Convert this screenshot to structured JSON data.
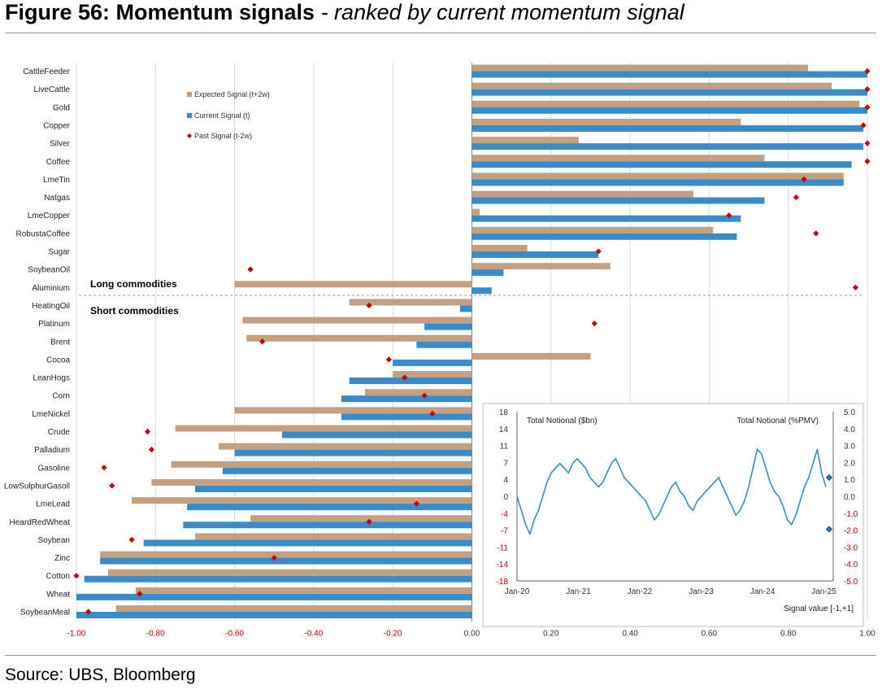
{
  "title": {
    "bold": "Figure 56: Momentum signals",
    "italic": " - ranked by current momentum signal"
  },
  "source": "Source: UBS, Bloomberg",
  "colors": {
    "expected": "#c4a080",
    "current": "#3a8cc8",
    "past": "#c00000",
    "grid": "#d9d9d9",
    "negative_tick": "#c00000",
    "inset_line": "#3a8cc8"
  },
  "chart_data": [
    {
      "type": "bar",
      "orientation": "horizontal",
      "categories": [
        "CattleFeeder",
        "LiveCattle",
        "Gold",
        "Copper",
        "Silver",
        "Coffee",
        "LmeTin",
        "Natgas",
        "LmeCopper",
        "RobustaCoffee",
        "Sugar",
        "SoybeanOil",
        "Aluminium",
        "HeatingOil",
        "Platinum",
        "Brent",
        "Cocoa",
        "LeanHogs",
        "Corn",
        "LmeNickel",
        "Crude",
        "Palladium",
        "Gasoline",
        "LowSulphurGasoil",
        "LmeLead",
        "HeardRedWheat",
        "Soybean",
        "Zinc",
        "Cotton",
        "Wheat",
        "SoybeanMeal"
      ],
      "series": [
        {
          "name": "Expected Signal (t+2w)",
          "values": [
            0.85,
            0.91,
            0.98,
            0.68,
            0.27,
            0.74,
            0.94,
            0.56,
            0.02,
            0.61,
            0.14,
            0.35,
            -0.6,
            -0.31,
            -0.58,
            -0.57,
            0.3,
            -0.2,
            -0.27,
            -0.6,
            -0.75,
            -0.64,
            -0.76,
            -0.81,
            -0.86,
            -0.56,
            -0.7,
            -0.94,
            -0.92,
            -0.85,
            -0.9
          ]
        },
        {
          "name": "Current Signal (t)",
          "values": [
            1.0,
            1.0,
            1.0,
            0.99,
            0.99,
            0.96,
            0.94,
            0.74,
            0.68,
            0.67,
            0.32,
            0.08,
            0.05,
            -0.03,
            -0.12,
            -0.14,
            -0.2,
            -0.31,
            -0.33,
            -0.33,
            -0.48,
            -0.6,
            -0.63,
            -0.7,
            -0.72,
            -0.73,
            -0.83,
            -0.94,
            -0.98,
            -1.0,
            -1.0
          ]
        },
        {
          "name": "Past Signal (t-2w)",
          "values": [
            1.0,
            1.0,
            1.0,
            0.99,
            1.0,
            1.0,
            0.84,
            0.82,
            0.65,
            0.87,
            0.32,
            -0.56,
            0.97,
            -0.26,
            0.31,
            -0.53,
            -0.21,
            -0.17,
            -0.12,
            -0.1,
            -0.82,
            -0.81,
            -0.93,
            -0.91,
            -0.14,
            -0.26,
            -0.86,
            -0.5,
            -1.0,
            -0.84,
            -0.97
          ]
        }
      ],
      "xlim": [
        -1.0,
        1.0
      ],
      "xticks": [
        "-1.00",
        "-0.80",
        "-0.60",
        "-0.40",
        "-0.20",
        "0.00",
        "0.20",
        "0.40",
        "0.60",
        "0.80",
        "1.00"
      ],
      "annotations": {
        "long": "Long commodities",
        "short": "Short commodities"
      },
      "legend": "top-left",
      "grid": true
    },
    {
      "type": "line",
      "x": [
        "Jan-20",
        "Jan-21",
        "Jan-22",
        "Jan-23",
        "Jan-24",
        "Jan-25"
      ],
      "left_axis_label": "Total Notional ($bn)",
      "right_axis_label": "Total Notional (%PMV)",
      "left_ticks": [
        "18",
        "14",
        "11",
        "7",
        "4",
        "0",
        "-4",
        "-7",
        "-11",
        "-14",
        "-18"
      ],
      "right_ticks": [
        "5.0",
        "4.0",
        "3.0",
        "2.0",
        "1.0",
        "0.0",
        "-1.0",
        "-2.0",
        "-3.0",
        "-4.0",
        "-5.0"
      ],
      "ylim_left": [
        -18,
        18
      ],
      "ylim_right": [
        -5.0,
        5.0
      ],
      "series_values": [
        0,
        -3,
        -6,
        -8,
        -5,
        -3,
        0,
        3,
        5,
        6,
        7,
        6,
        5,
        7,
        8,
        7,
        6,
        4,
        3,
        2,
        3,
        5,
        7,
        8,
        6,
        4,
        3,
        2,
        1,
        0,
        -1,
        -3,
        -5,
        -4,
        -2,
        0,
        2,
        3,
        1,
        0,
        -2,
        -3,
        -1,
        0,
        1,
        2,
        3,
        4,
        2,
        0,
        -2,
        -4,
        -3,
        -1,
        2,
        6,
        10,
        9,
        6,
        3,
        1,
        0,
        -2,
        -5,
        -6,
        -4,
        -1,
        2,
        4,
        7,
        10,
        5,
        2
      ],
      "markers": [
        {
          "x": "Jan-25",
          "value": 4
        },
        {
          "x": "Jan-25",
          "value": -7
        }
      ],
      "footer": "Signal value [-1,+1]"
    }
  ]
}
